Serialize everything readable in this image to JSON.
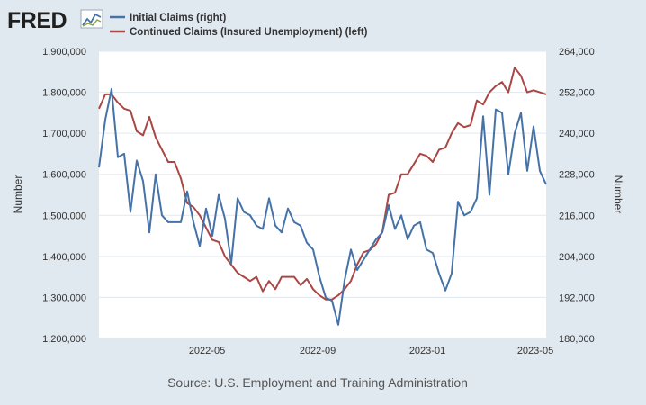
{
  "logo": {
    "text": "FRED",
    "icon": "line-chart-icon"
  },
  "source": "Source: U.S. Employment and Training Administration",
  "colors": {
    "background": "#e1e9f0",
    "plot_background": "#ffffff",
    "grid": "#e1e9f0",
    "initial_claims": "#4572a7",
    "continued_claims": "#aa4643",
    "logo": "#1f1f1f"
  },
  "chart_data": {
    "type": "line",
    "x_tick_labels": [
      "2022-05",
      "2022-09",
      "2023-01",
      "2023-05"
    ],
    "x_tick_dates": [
      "2022-05-01",
      "2022-09-01",
      "2023-01-01",
      "2023-05-01"
    ],
    "x_range": [
      "2022-01-01",
      "2023-05-13"
    ],
    "ylabel_left": "Number",
    "ylabel_right": "Number",
    "ylim_left": [
      1200000,
      1900000
    ],
    "ylim_right": [
      180000,
      264000
    ],
    "y_ticks_left": [
      "1,200,000",
      "1,300,000",
      "1,400,000",
      "1,500,000",
      "1,600,000",
      "1,700,000",
      "1,800,000",
      "1,900,000"
    ],
    "y_ticks_right": [
      "180,000",
      "192,000",
      "204,000",
      "216,000",
      "228,000",
      "240,000",
      "252,000",
      "264,000"
    ],
    "grid": true,
    "legend_placement": "top-left",
    "series": [
      {
        "name": "Initial Claims (right)",
        "axis": "right",
        "dates": [
          "2022-01-01",
          "2022-01-08",
          "2022-01-15",
          "2022-01-22",
          "2022-01-29",
          "2022-02-05",
          "2022-02-12",
          "2022-02-19",
          "2022-02-26",
          "2022-03-05",
          "2022-03-12",
          "2022-03-19",
          "2022-03-26",
          "2022-04-02",
          "2022-04-09",
          "2022-04-16",
          "2022-04-23",
          "2022-04-30",
          "2022-05-07",
          "2022-05-14",
          "2022-05-21",
          "2022-05-28",
          "2022-06-04",
          "2022-06-11",
          "2022-06-18",
          "2022-06-25",
          "2022-07-02",
          "2022-07-09",
          "2022-07-16",
          "2022-07-23",
          "2022-07-30",
          "2022-08-06",
          "2022-08-13",
          "2022-08-20",
          "2022-08-27",
          "2022-09-03",
          "2022-09-10",
          "2022-09-17",
          "2022-09-24",
          "2022-10-01",
          "2022-10-08",
          "2022-10-15",
          "2022-10-22",
          "2022-10-29",
          "2022-11-05",
          "2022-11-12",
          "2022-11-19",
          "2022-11-26",
          "2022-12-03",
          "2022-12-10",
          "2022-12-17",
          "2022-12-24",
          "2022-12-31",
          "2023-01-07",
          "2023-01-14",
          "2023-01-21",
          "2023-01-28",
          "2023-02-04",
          "2023-02-11",
          "2023-02-18",
          "2023-02-25",
          "2023-03-04",
          "2023-03-11",
          "2023-03-18",
          "2023-03-25",
          "2023-04-01",
          "2023-04-08",
          "2023-04-15",
          "2023-04-22",
          "2023-04-29",
          "2023-05-06",
          "2023-05-13"
        ],
        "values": [
          230000,
          244000,
          253000,
          233000,
          234000,
          217000,
          232000,
          226000,
          211000,
          228000,
          216000,
          214000,
          214000,
          214000,
          223000,
          214000,
          207000,
          218000,
          210000,
          222000,
          215000,
          202000,
          221000,
          217000,
          216000,
          213000,
          212000,
          221000,
          213000,
          211000,
          218000,
          214000,
          213000,
          208000,
          206000,
          198000,
          192000,
          191000,
          184000,
          197000,
          206000,
          200000,
          203000,
          206000,
          209000,
          211000,
          219000,
          212000,
          216000,
          209000,
          213000,
          214000,
          206000,
          205000,
          199000,
          194000,
          199000,
          220000,
          216000,
          217000,
          221000,
          245000,
          222000,
          247000,
          246000,
          228000,
          240000,
          246000,
          229000,
          242000,
          229000,
          225000
        ]
      },
      {
        "name": "Continued Claims (Insured Unemployment) (left)",
        "axis": "left",
        "dates": [
          "2022-01-01",
          "2022-01-08",
          "2022-01-15",
          "2022-01-22",
          "2022-01-29",
          "2022-02-05",
          "2022-02-12",
          "2022-02-19",
          "2022-02-26",
          "2022-03-05",
          "2022-03-12",
          "2022-03-19",
          "2022-03-26",
          "2022-04-02",
          "2022-04-09",
          "2022-04-16",
          "2022-04-23",
          "2022-04-30",
          "2022-05-07",
          "2022-05-14",
          "2022-05-21",
          "2022-05-28",
          "2022-06-04",
          "2022-06-11",
          "2022-06-18",
          "2022-06-25",
          "2022-07-02",
          "2022-07-09",
          "2022-07-16",
          "2022-07-23",
          "2022-07-30",
          "2022-08-06",
          "2022-08-13",
          "2022-08-20",
          "2022-08-27",
          "2022-09-03",
          "2022-09-10",
          "2022-09-17",
          "2022-09-24",
          "2022-10-01",
          "2022-10-08",
          "2022-10-15",
          "2022-10-22",
          "2022-10-29",
          "2022-11-05",
          "2022-11-12",
          "2022-11-19",
          "2022-11-26",
          "2022-12-03",
          "2022-12-10",
          "2022-12-17",
          "2022-12-24",
          "2022-12-31",
          "2023-01-07",
          "2023-01-14",
          "2023-01-21",
          "2023-01-28",
          "2023-02-04",
          "2023-02-11",
          "2023-02-18",
          "2023-02-25",
          "2023-03-04",
          "2023-03-11",
          "2023-03-18",
          "2023-03-25",
          "2023-04-01",
          "2023-04-08",
          "2023-04-15",
          "2023-04-22",
          "2023-04-29",
          "2023-05-06",
          "2023-05-13"
        ],
        "values": [
          1760000,
          1795000,
          1795000,
          1775000,
          1760000,
          1755000,
          1705000,
          1695000,
          1740000,
          1690000,
          1660000,
          1630000,
          1630000,
          1590000,
          1530000,
          1520000,
          1500000,
          1470000,
          1440000,
          1435000,
          1400000,
          1380000,
          1360000,
          1350000,
          1340000,
          1350000,
          1315000,
          1340000,
          1320000,
          1350000,
          1350000,
          1350000,
          1330000,
          1345000,
          1320000,
          1305000,
          1295000,
          1295000,
          1305000,
          1320000,
          1340000,
          1380000,
          1410000,
          1415000,
          1430000,
          1460000,
          1550000,
          1555000,
          1600000,
          1600000,
          1625000,
          1650000,
          1645000,
          1630000,
          1660000,
          1665000,
          1700000,
          1725000,
          1715000,
          1720000,
          1780000,
          1770000,
          1800000,
          1815000,
          1825000,
          1800000,
          1860000,
          1840000,
          1800000,
          1805000,
          1800000,
          1795000
        ]
      }
    ]
  }
}
